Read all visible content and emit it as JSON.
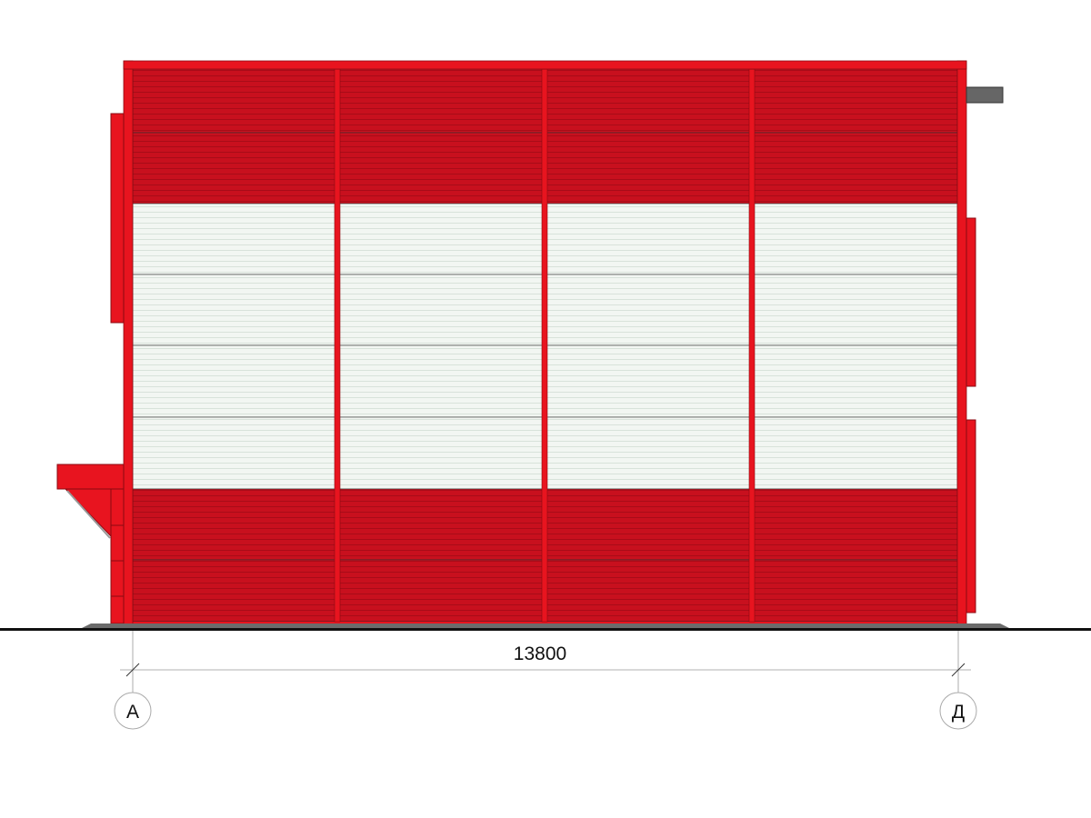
{
  "drawing": {
    "dimension_label": "13800",
    "axes": [
      {
        "label": "А"
      },
      {
        "label": "Д"
      }
    ],
    "bays": 4,
    "panel_rows": [
      "red",
      "red",
      "white",
      "white",
      "white",
      "white",
      "red",
      "red"
    ],
    "colors": {
      "frame_red": "#e8141f",
      "panel_red": "#c8101e",
      "panel_white": "#eef3ef",
      "ground": "#111111",
      "plinth": "#6b6b6b",
      "vent": "#666666"
    }
  }
}
